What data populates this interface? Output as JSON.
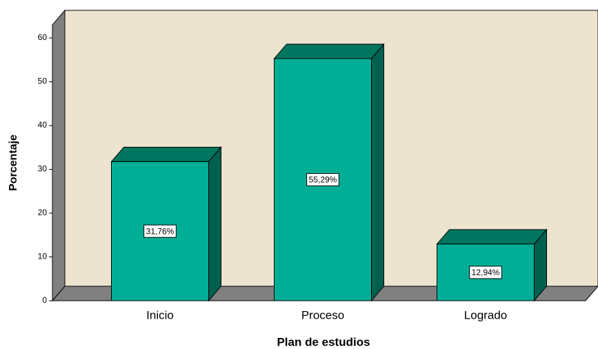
{
  "chart_data": {
    "type": "bar3d",
    "categories": [
      "Inicio",
      "Proceso",
      "Logrado"
    ],
    "values": [
      31.76,
      55.29,
      12.94
    ],
    "value_labels": [
      "31,76%",
      "55,29%",
      "12,94%"
    ],
    "ylim": [
      0,
      63
    ],
    "yticks": [
      0,
      10,
      20,
      30,
      40,
      50,
      60
    ],
    "x_label": "Plan de estudios",
    "y_label": "Porcentaje",
    "color": "#00ae96"
  }
}
